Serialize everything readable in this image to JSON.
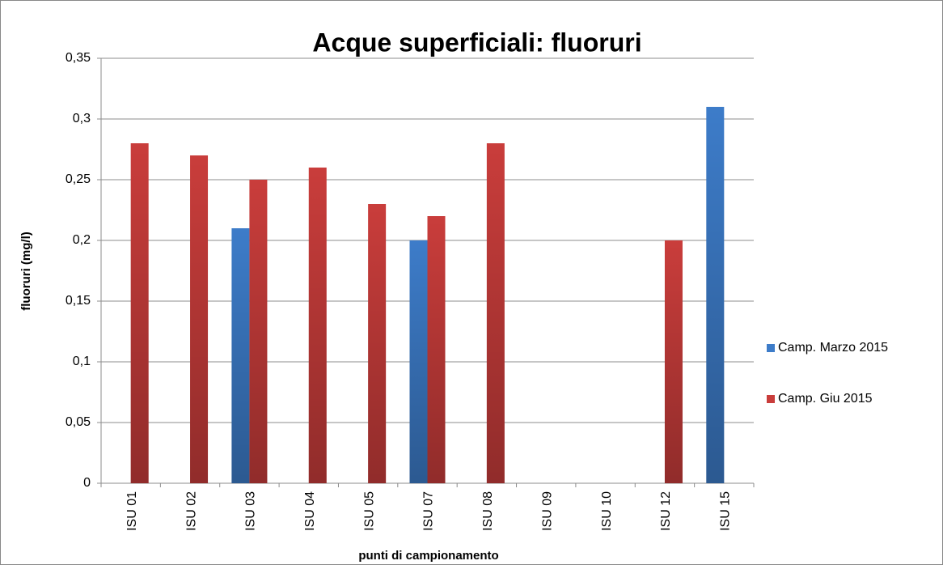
{
  "chart_data": {
    "type": "bar",
    "title": "Acque superficiali: fluoruri",
    "x_label": "punti di campionamento",
    "y_label": "fluoruri (mg/l)",
    "categories": [
      "ISU 01",
      "ISU 02",
      "ISU 03",
      "ISU 04",
      "ISU 05",
      "ISU 07",
      "ISU 08",
      "ISU 09",
      "ISU 10",
      "ISU 12",
      "ISU 15"
    ],
    "series": [
      {
        "name": "Camp. Marzo 2015",
        "color": "#3d7cc9",
        "values": [
          null,
          null,
          0.21,
          null,
          null,
          0.2,
          null,
          null,
          null,
          null,
          0.31
        ]
      },
      {
        "name": "Camp. Giu 2015",
        "color": "#c93d3b",
        "values": [
          0.28,
          0.27,
          0.25,
          0.26,
          0.23,
          0.22,
          0.28,
          null,
          null,
          0.2,
          null
        ]
      }
    ],
    "ylim": [
      0,
      0.35
    ],
    "yticks": [
      {
        "value": 0,
        "label": "0"
      },
      {
        "value": 0.05,
        "label": "0,05"
      },
      {
        "value": 0.1,
        "label": "0,1"
      },
      {
        "value": 0.15,
        "label": "0,15"
      },
      {
        "value": 0.2,
        "label": "0,2"
      },
      {
        "value": 0.25,
        "label": "0,25"
      },
      {
        "value": 0.3,
        "label": "0,3"
      },
      {
        "value": 0.35,
        "label": "0,35"
      }
    ],
    "grid": true,
    "legend": "right"
  }
}
